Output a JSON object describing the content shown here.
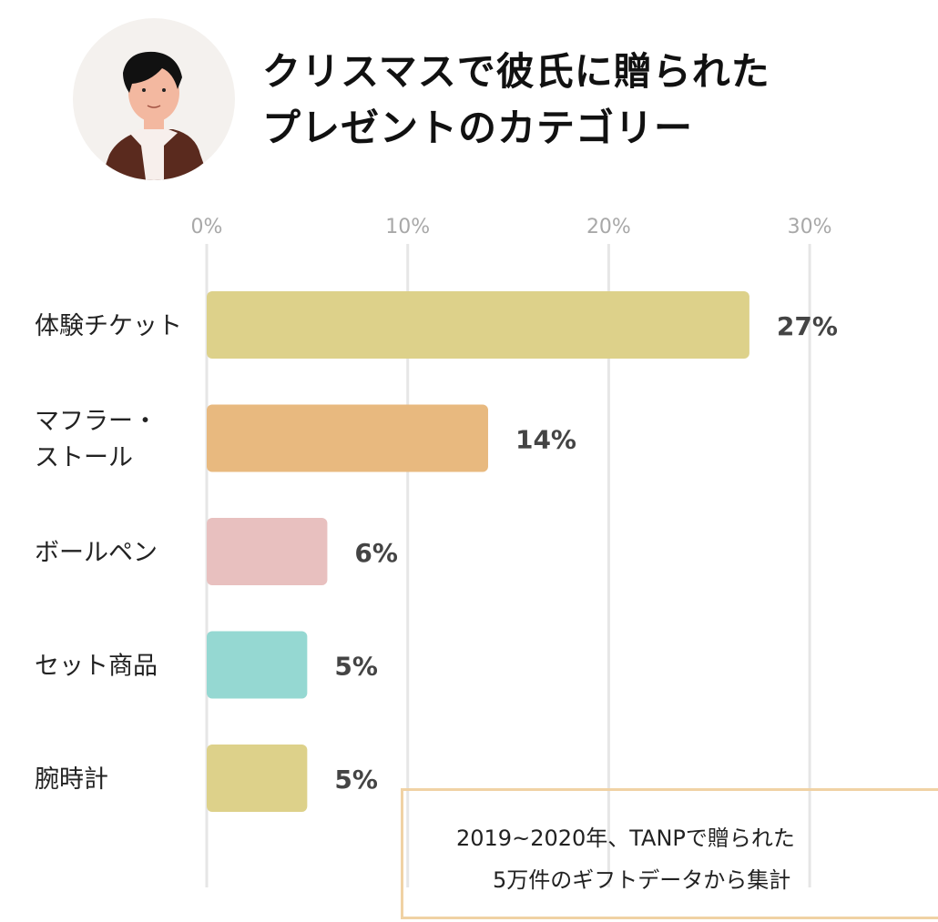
{
  "title": [
    "クリスマスで彼氏に贈られた",
    "プレゼントのカテゴリー"
  ],
  "avatar": {
    "icon": "man-illustration-icon",
    "bg": "#f4f1ee"
  },
  "note": [
    "2019~2020年、TANPで贈られた",
    "5万件のギフトデータから集計"
  ],
  "chart_data": {
    "type": "bar",
    "orientation": "horizontal",
    "categories": [
      "体験チケット",
      "マフラー・\nストール",
      "ボールペン",
      "セット商品",
      "腕時計"
    ],
    "values": [
      27,
      14,
      6,
      5,
      5
    ],
    "data_labels": [
      "27%",
      "14%",
      "6%",
      "5%",
      "5%"
    ],
    "colors": [
      "#ddd18a",
      "#e8b97f",
      "#e8c0bf",
      "#95d8d2",
      "#ddd18a"
    ],
    "xticks": [
      "0%",
      "10%",
      "20%",
      "30%"
    ],
    "xtick_values": [
      0,
      10,
      20,
      30
    ],
    "xlim": [
      0,
      36
    ],
    "grid": true,
    "legend": "none"
  }
}
